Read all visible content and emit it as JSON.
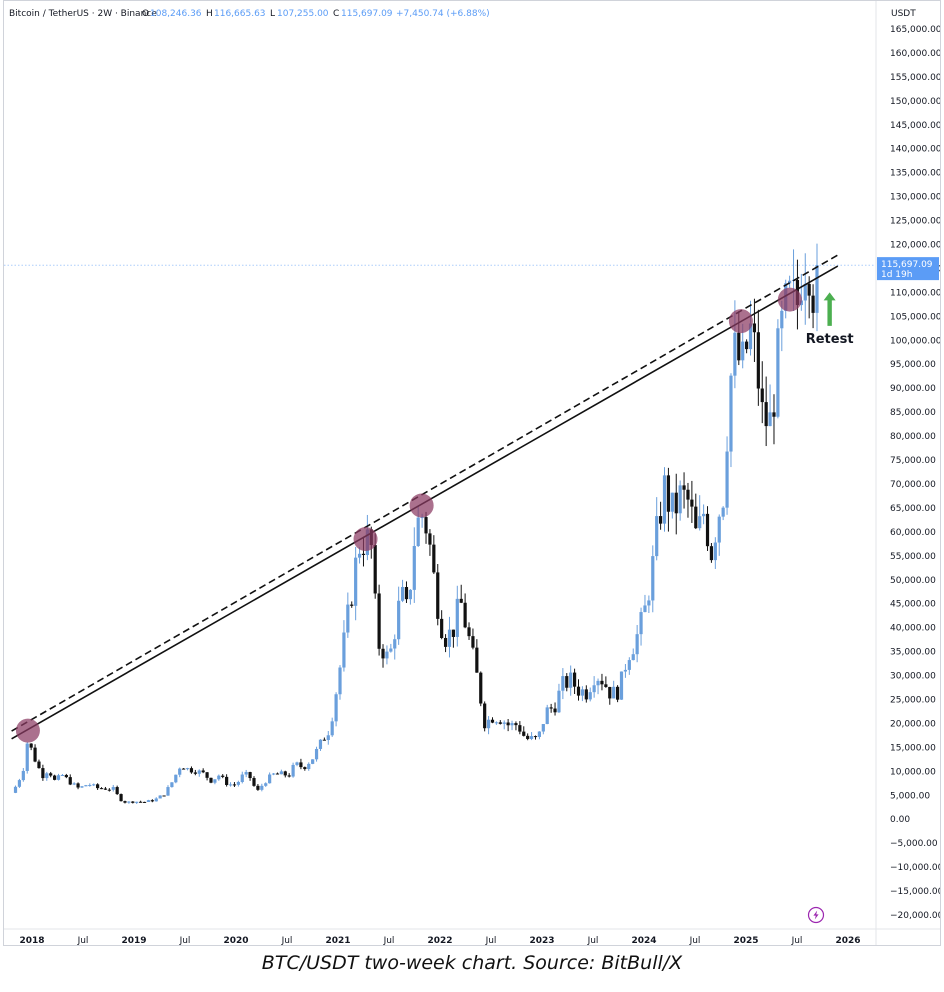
{
  "header": {
    "symbol": "Bitcoin / TetherUS · 2W · Binance",
    "open_label": "O",
    "open_value": "108,246.36",
    "high_label": "H",
    "high_value": "116,665.63",
    "low_label": "L",
    "low_value": "107,255.00",
    "close_label": "C",
    "close_value": "115,697.09",
    "change": "+7,450.74 (+6.88%)"
  },
  "price_tag": {
    "price": "115,697.09",
    "countdown": "1d 19h"
  },
  "currency_label": "USDT",
  "caption": "BTC/USDT two-week chart. Source: BitBull/X",
  "annotation": {
    "text": "Retest",
    "arrow_color": "#4caf50"
  },
  "colors": {
    "up": "#6a9fdc",
    "down": "#111111",
    "touch": "#8b3a62",
    "price_tag": "#5b9cf6"
  },
  "chart_data": {
    "type": "candlestick",
    "interval": "2W",
    "currency": "USDT",
    "ylim": [
      -22000,
      167000
    ],
    "y_ticks": [
      -20000,
      -15000,
      -10000,
      -5000,
      0,
      5000,
      10000,
      15000,
      20000,
      25000,
      30000,
      35000,
      40000,
      45000,
      50000,
      55000,
      60000,
      65000,
      70000,
      75000,
      80000,
      85000,
      90000,
      95000,
      100000,
      105000,
      110000,
      115000,
      120000,
      125000,
      130000,
      135000,
      140000,
      145000,
      150000,
      155000,
      160000,
      165000
    ],
    "y_tick_labels": [
      "−20,000.00",
      "−15,000.00",
      "−10,000.00",
      "−5,000.00",
      "0.00",
      "5,000.00",
      "10,000.00",
      "15,000.00",
      "20,000.00",
      "25,000.00",
      "30,000.00",
      "35,000.00",
      "40,000.00",
      "45,000.00",
      "50,000.00",
      "55,000.00",
      "60,000.00",
      "65,000.00",
      "70,000.00",
      "75,000.00",
      "80,000.00",
      "85,000.00",
      "90,000.00",
      "95,000.00",
      "100,000.00",
      "105,000.00",
      "110,000.00",
      "115,000.00",
      "120,000.00",
      "125,000.00",
      "130,000.00",
      "135,000.00",
      "140,000.00",
      "145,000.00",
      "150,000.00",
      "155,000.00",
      "160,000.00",
      "165,000.00"
    ],
    "x_range": [
      2017.8,
      2026.1
    ],
    "x_ticks": [
      {
        "t": 2018.0,
        "label": "2018",
        "bold": true
      },
      {
        "t": 2018.5,
        "label": "Jul",
        "bold": false
      },
      {
        "t": 2019.0,
        "label": "2019",
        "bold": true
      },
      {
        "t": 2019.5,
        "label": "Jul",
        "bold": false
      },
      {
        "t": 2020.0,
        "label": "2020",
        "bold": true
      },
      {
        "t": 2020.5,
        "label": "Jul",
        "bold": false
      },
      {
        "t": 2021.0,
        "label": "2021",
        "bold": true
      },
      {
        "t": 2021.5,
        "label": "Jul",
        "bold": false
      },
      {
        "t": 2022.0,
        "label": "2022",
        "bold": true
      },
      {
        "t": 2022.5,
        "label": "Jul",
        "bold": false
      },
      {
        "t": 2023.0,
        "label": "2023",
        "bold": true
      },
      {
        "t": 2023.5,
        "label": "Jul",
        "bold": false
      },
      {
        "t": 2024.0,
        "label": "2024",
        "bold": true
      },
      {
        "t": 2024.5,
        "label": "Jul",
        "bold": false
      },
      {
        "t": 2025.0,
        "label": "2025",
        "bold": true
      },
      {
        "t": 2025.5,
        "label": "Jul",
        "bold": false
      },
      {
        "t": 2026.0,
        "label": "2026",
        "bold": true
      }
    ],
    "price_path": [
      [
        2017.8,
        5500
      ],
      [
        2017.86,
        7500
      ],
      [
        2017.92,
        11000
      ],
      [
        2017.96,
        17000
      ],
      [
        2018.0,
        14000
      ],
      [
        2018.05,
        11500
      ],
      [
        2018.1,
        9000
      ],
      [
        2018.16,
        10500
      ],
      [
        2018.22,
        8000
      ],
      [
        2018.3,
        9200
      ],
      [
        2018.38,
        7600
      ],
      [
        2018.46,
        6400
      ],
      [
        2018.55,
        7400
      ],
      [
        2018.64,
        6500
      ],
      [
        2018.72,
        6400
      ],
      [
        2018.8,
        6300
      ],
      [
        2018.86,
        4200
      ],
      [
        2018.92,
        3500
      ],
      [
        2019.0,
        3700
      ],
      [
        2019.1,
        3600
      ],
      [
        2019.2,
        4000
      ],
      [
        2019.3,
        5300
      ],
      [
        2019.38,
        8000
      ],
      [
        2019.46,
        11500
      ],
      [
        2019.52,
        10500
      ],
      [
        2019.6,
        10200
      ],
      [
        2019.68,
        9500
      ],
      [
        2019.76,
        8000
      ],
      [
        2019.83,
        9200
      ],
      [
        2019.92,
        7300
      ],
      [
        2020.0,
        7200
      ],
      [
        2020.08,
        9500
      ],
      [
        2020.15,
        8500
      ],
      [
        2020.2,
        5500
      ],
      [
        2020.28,
        7800
      ],
      [
        2020.36,
        9300
      ],
      [
        2020.44,
        9400
      ],
      [
        2020.52,
        9200
      ],
      [
        2020.58,
        11500
      ],
      [
        2020.66,
        10800
      ],
      [
        2020.76,
        13000
      ],
      [
        2020.86,
        17000
      ],
      [
        2020.92,
        19000
      ],
      [
        2021.0,
        29000
      ],
      [
        2021.08,
        40000
      ],
      [
        2021.14,
        48000
      ],
      [
        2021.2,
        57000
      ],
      [
        2021.28,
        58500
      ],
      [
        2021.34,
        56000
      ],
      [
        2021.38,
        37000
      ],
      [
        2021.44,
        35500
      ],
      [
        2021.5,
        33000
      ],
      [
        2021.56,
        40000
      ],
      [
        2021.62,
        47000
      ],
      [
        2021.68,
        43000
      ],
      [
        2021.76,
        61000
      ],
      [
        2021.84,
        64000
      ],
      [
        2021.9,
        57000
      ],
      [
        2021.96,
        47000
      ],
      [
        2022.04,
        38000
      ],
      [
        2022.12,
        39000
      ],
      [
        2022.2,
        45500
      ],
      [
        2022.28,
        38000
      ],
      [
        2022.36,
        30000
      ],
      [
        2022.44,
        20000
      ],
      [
        2022.52,
        21500
      ],
      [
        2022.6,
        21000
      ],
      [
        2022.68,
        19500
      ],
      [
        2022.76,
        19800
      ],
      [
        2022.84,
        16800
      ],
      [
        2022.96,
        16600
      ],
      [
        2023.04,
        22500
      ],
      [
        2023.12,
        23500
      ],
      [
        2023.2,
        28000
      ],
      [
        2023.28,
        29000
      ],
      [
        2023.36,
        27000
      ],
      [
        2023.44,
        26500
      ],
      [
        2023.52,
        30500
      ],
      [
        2023.6,
        29000
      ],
      [
        2023.68,
        26000
      ],
      [
        2023.76,
        27000
      ],
      [
        2023.84,
        34500
      ],
      [
        2023.92,
        37500
      ],
      [
        2024.0,
        42500
      ],
      [
        2024.08,
        52000
      ],
      [
        2024.14,
        62000
      ],
      [
        2024.2,
        69000
      ],
      [
        2024.28,
        64000
      ],
      [
        2024.36,
        67500
      ],
      [
        2024.44,
        66000
      ],
      [
        2024.52,
        58000
      ],
      [
        2024.58,
        64500
      ],
      [
        2024.66,
        56000
      ],
      [
        2024.72,
        63000
      ],
      [
        2024.78,
        68500
      ],
      [
        2024.84,
        91000
      ],
      [
        2024.9,
        98000
      ],
      [
        2024.96,
        93500
      ],
      [
        2025.04,
        102000
      ],
      [
        2025.1,
        96000
      ],
      [
        2025.16,
        84000
      ],
      [
        2025.24,
        82500
      ],
      [
        2025.3,
        94000
      ],
      [
        2025.36,
        103500
      ],
      [
        2025.42,
        108000
      ],
      [
        2025.5,
        107000
      ],
      [
        2025.56,
        118000
      ],
      [
        2025.62,
        117500
      ],
      [
        2025.68,
        108200
      ],
      [
        2025.72,
        115697
      ]
    ],
    "trendlines": [
      {
        "style": "solid",
        "from": [
          2017.8,
          16800
        ],
        "to": [
          2025.9,
          115500
        ]
      },
      {
        "style": "dashed",
        "from": [
          2017.8,
          18400
        ],
        "to": [
          2025.9,
          117800
        ]
      }
    ],
    "touch_points": [
      {
        "t": 2017.96,
        "price": 18500
      },
      {
        "t": 2021.27,
        "price": 58500
      },
      {
        "t": 2021.82,
        "price": 65500
      },
      {
        "t": 2024.95,
        "price": 104000
      },
      {
        "t": 2025.43,
        "price": 108500
      }
    ],
    "last_price": 115697.09
  }
}
